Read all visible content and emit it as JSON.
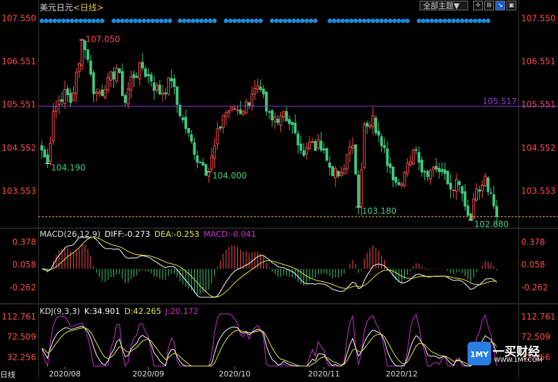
{
  "header": {
    "title": "美元日元",
    "period": "<日线>",
    "theme_button": "全部主题▼",
    "tool_icons": [
      "crosshair-icon",
      "zoom-in-icon",
      "zoom-out-icon",
      "chart-type-icon",
      "toggle-icon"
    ]
  },
  "price_axis": {
    "labels": [
      "107.550",
      "106.551",
      "105.551",
      "104.552",
      "103.553"
    ],
    "levels": [
      107.55,
      106.551,
      105.551,
      104.552,
      103.553
    ],
    "ref_line": {
      "value": 105.517,
      "label": "105.517",
      "color": "#8a3dd6"
    },
    "last_line": {
      "value": 102.96,
      "color": "#e8c84a"
    }
  },
  "annotations": [
    {
      "label": "107.050",
      "value": 107.05,
      "index": 14,
      "color": "#ff4d4d",
      "side": "right"
    },
    {
      "label": "104.190",
      "value": 104.19,
      "index": 2,
      "color": "#44cc88",
      "side": "right"
    },
    {
      "label": "104.000",
      "value": 104.0,
      "index": 58,
      "color": "#44cc88",
      "side": "right"
    },
    {
      "label": "103.180",
      "value": 103.18,
      "index": 110,
      "color": "#44cc88",
      "side": "right"
    },
    {
      "label": "102.880",
      "value": 102.88,
      "index": 149,
      "color": "#44cc88",
      "side": "right"
    }
  ],
  "macd": {
    "label": "MACD(26,12,9)",
    "diff_label": "DIFF:-0.273",
    "dea_label": "DEA:-0.253",
    "macd_label": "MACD:-0.041",
    "axis_labels": [
      "0.378",
      "0.058",
      "-0.262"
    ],
    "axis_levels": [
      0.378,
      0.058,
      -0.262
    ]
  },
  "kdj": {
    "label": "KDJ(9,3,3)",
    "k_label": "K:34.901",
    "d_label": "D:42.265",
    "j_label": "J:20.172",
    "axis_labels": [
      "112.761",
      "72.509",
      "32.256"
    ],
    "axis_levels": [
      112.761,
      72.509,
      32.256
    ]
  },
  "date_axis": {
    "labels": [
      "2020/08",
      "2020/09",
      "2020/10",
      "2020/11",
      "2020/12"
    ],
    "indices": [
      8,
      37,
      67,
      98,
      125
    ]
  },
  "logo": {
    "main": "一买财经",
    "sub": "WWW.1MY.COM",
    "badge": "1MY"
  },
  "bottom_label": "日线",
  "colors": {
    "up": "#ff4d4d",
    "down": "#3ec97f",
    "diff": "#ffffff",
    "dea": "#e8e84a",
    "k": "#ffffff",
    "d": "#e8e84a",
    "j": "#cc33cc",
    "dots": "#1e8ad6"
  },
  "chart_data": {
    "type": "candlestick",
    "ylim": [
      102.7,
      107.75
    ],
    "anchors": [
      [
        0,
        104.5
      ],
      [
        2,
        104.19
      ],
      [
        4,
        105.4
      ],
      [
        8,
        105.9
      ],
      [
        10,
        105.6
      ],
      [
        13,
        106.5
      ],
      [
        14,
        107.05
      ],
      [
        16,
        106.6
      ],
      [
        18,
        105.8
      ],
      [
        22,
        105.9
      ],
      [
        26,
        106.4
      ],
      [
        29,
        105.6
      ],
      [
        31,
        106.2
      ],
      [
        35,
        106.4
      ],
      [
        38,
        106.1
      ],
      [
        41,
        105.8
      ],
      [
        45,
        106.1
      ],
      [
        48,
        105.3
      ],
      [
        51,
        104.9
      ],
      [
        53,
        104.4
      ],
      [
        56,
        104.15
      ],
      [
        58,
        104.0
      ],
      [
        60,
        104.6
      ],
      [
        63,
        105.3
      ],
      [
        66,
        105.5
      ],
      [
        70,
        105.4
      ],
      [
        73,
        105.8
      ],
      [
        76,
        105.9
      ],
      [
        78,
        105.4
      ],
      [
        80,
        105.2
      ],
      [
        84,
        105.4
      ],
      [
        88,
        104.9
      ],
      [
        90,
        104.5
      ],
      [
        94,
        104.7
      ],
      [
        97,
        104.5
      ],
      [
        100,
        104.1
      ],
      [
        103,
        103.9
      ],
      [
        106,
        104.4
      ],
      [
        108,
        104.6
      ],
      [
        110,
        103.18
      ],
      [
        112,
        105.1
      ],
      [
        115,
        105.3
      ],
      [
        118,
        104.6
      ],
      [
        121,
        104.1
      ],
      [
        124,
        103.7
      ],
      [
        127,
        104.2
      ],
      [
        130,
        104.5
      ],
      [
        133,
        104.0
      ],
      [
        136,
        104.1
      ],
      [
        139,
        104.0
      ],
      [
        142,
        103.6
      ],
      [
        145,
        103.7
      ],
      [
        147,
        103.2
      ],
      [
        149,
        102.88
      ],
      [
        151,
        103.6
      ],
      [
        154,
        103.9
      ],
      [
        156,
        103.5
      ],
      [
        158,
        102.96
      ]
    ],
    "count": 159
  }
}
